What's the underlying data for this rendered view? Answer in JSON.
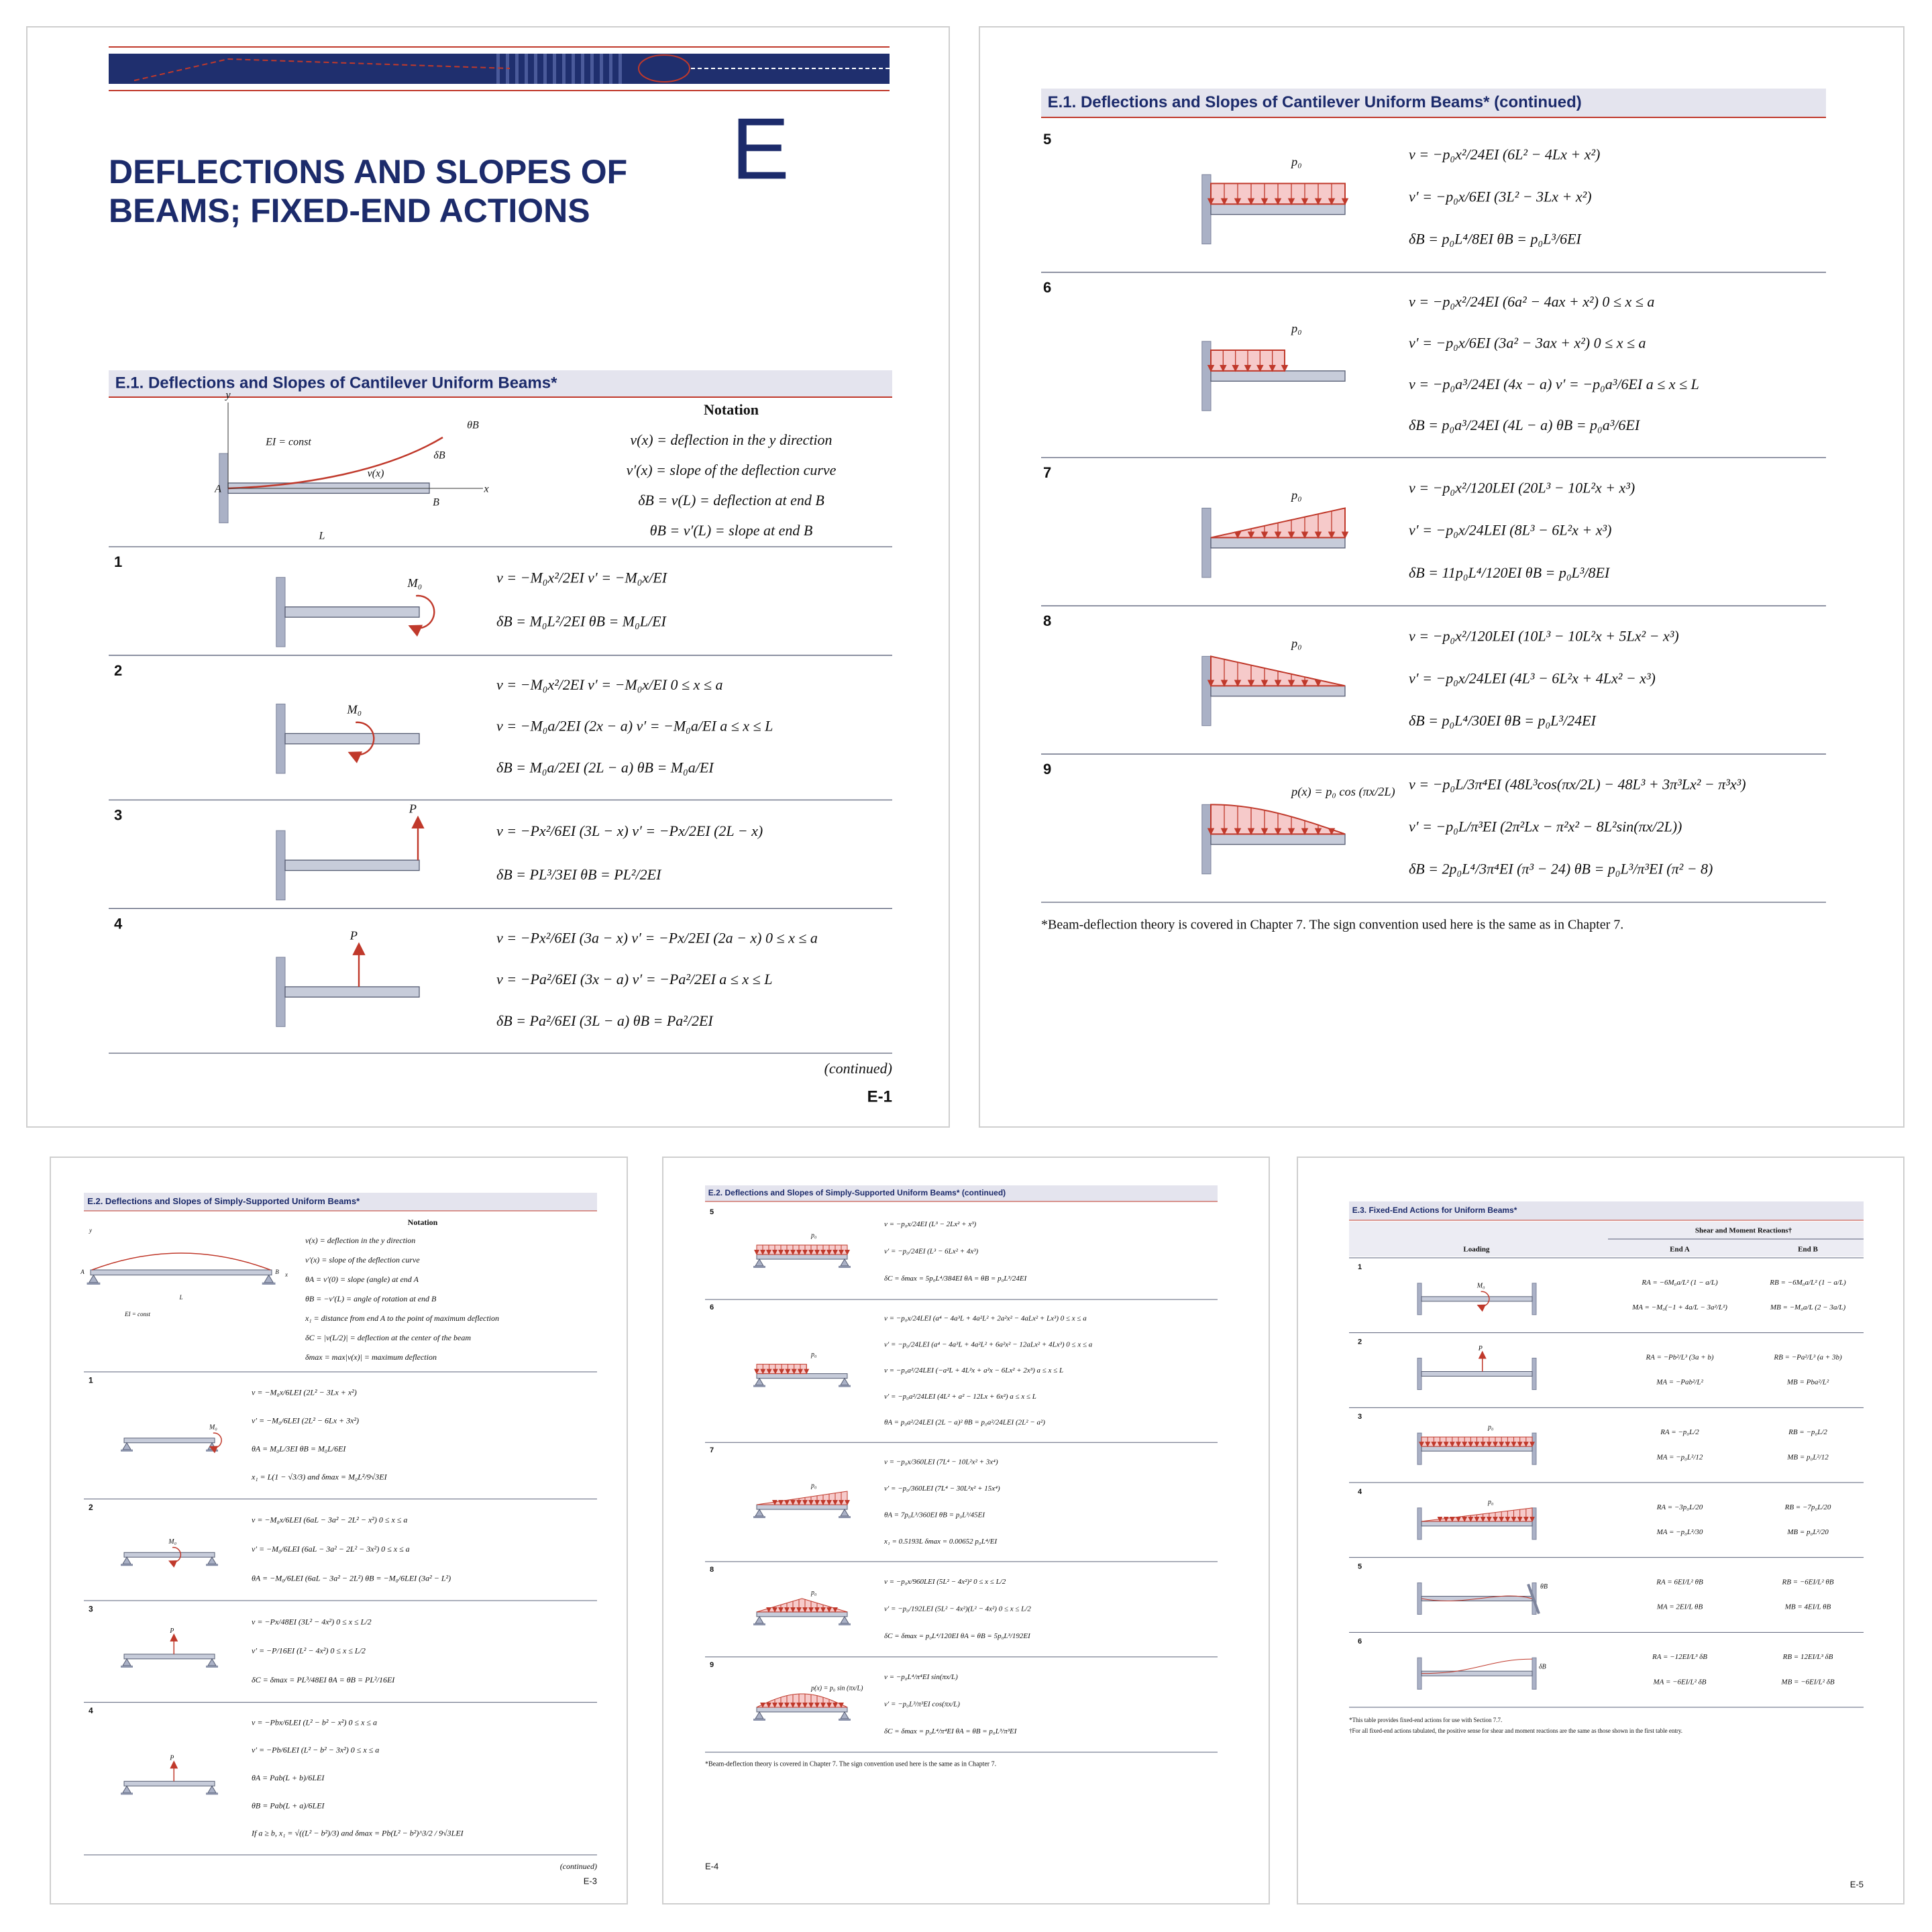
{
  "pages": [
    {
      "chapter_title": [
        "DEFLECTIONS AND SLOPES OF",
        "BEAMS; FIXED-END ACTIONS"
      ],
      "appendix_letter": "E",
      "section_title": "E.1.  Deflections and Slopes of Cantilever Uniform Beams*",
      "notation": {
        "heading": "Notation",
        "lines": [
          "v(x) = deflection in the y direction",
          "v′(x) = slope of the deflection curve",
          "δB = v(L) = deflection at end B",
          "θB = v′(L) = slope at end B"
        ],
        "diagram_labels": [
          "EI = const",
          "v(x)",
          "θB",
          "δB",
          "A",
          "B",
          "x",
          "y",
          "L"
        ]
      },
      "cases": [
        {
          "number": "1",
          "load_label": "M₀",
          "formulas": [
            "v = −M₀x²/2EI     v′ = −M₀x/EI",
            "δB = M₀L²/2EI     θB = M₀L/EI"
          ]
        },
        {
          "number": "2",
          "load_label": "M₀",
          "formulas": [
            "v = −M₀x²/2EI     v′ = −M₀x/EI     0 ≤ x ≤ a",
            "v = −M₀a/2EI (2x − a)     v′ = −M₀a/EI     a ≤ x ≤ L",
            "δB = M₀a/2EI (2L − a)     θB = M₀a/EI"
          ]
        },
        {
          "number": "3",
          "load_label": "P",
          "formulas": [
            "v = −Px²/6EI (3L − x)     v′ = −Px/2EI (2L − x)",
            "δB = PL³/3EI     θB = PL²/2EI"
          ]
        },
        {
          "number": "4",
          "load_label": "P",
          "formulas": [
            "v = −Px²/6EI (3a − x)     v′ = −Px/2EI (2a − x)     0 ≤ x ≤ a",
            "v = −Pa²/6EI (3x − a)     v′ = −Pa²/2EI     a ≤ x ≤ L",
            "δB = Pa²/6EI (3L − a)     θB = Pa²/2EI"
          ]
        }
      ],
      "continued": "(continued)",
      "page_number": "E-1"
    },
    {
      "section_title": "E.1.  Deflections and Slopes of Cantilever Uniform Beams* (continued)",
      "cases": [
        {
          "number": "5",
          "load_label": "p₀",
          "formulas": [
            "v = −p₀x²/24EI (6L² − 4Lx + x²)",
            "v′ = −p₀x/6EI (3L² − 3Lx + x²)",
            "δB = p₀L⁴/8EI     θB = p₀L³/6EI"
          ]
        },
        {
          "number": "6",
          "load_label": "p₀",
          "formulas": [
            "v = −p₀x²/24EI (6a² − 4ax + x²)     0 ≤ x ≤ a",
            "v′ = −p₀x/6EI (3a² − 3ax + x²)     0 ≤ x ≤ a",
            "v = −p₀a³/24EI (4x − a)     v′ = −p₀a³/6EI     a ≤ x ≤ L",
            "δB = p₀a³/24EI (4L − a)     θB = p₀a³/6EI"
          ]
        },
        {
          "number": "7",
          "load_label": "p₀",
          "formulas": [
            "v = −p₀x²/120LEI (20L³ − 10L²x + x³)",
            "v′ = −p₀x/24LEI (8L³ − 6L²x + x³)",
            "δB = 11p₀L⁴/120EI     θB = p₀L³/8EI"
          ]
        },
        {
          "number": "8",
          "load_label": "p₀",
          "formulas": [
            "v = −p₀x²/120LEI (10L³ − 10L²x + 5Lx² − x³)",
            "v′ = −p₀x/24LEI (4L³ − 6L²x + 4Lx² − x³)",
            "δB = p₀L⁴/30EI     θB = p₀L³/24EI"
          ]
        },
        {
          "number": "9",
          "load_label": "p(x) = p₀ cos (πx/2L)",
          "formulas": [
            "v = −p₀L/3π⁴EI (48L³cos(πx/2L) − 48L³ + 3π³Lx² − π³x³)",
            "v′ = −p₀L/π³EI (2π²Lx − π²x² − 8L²sin(πx/2L))",
            "δB = 2p₀L⁴/3π⁴EI (π³ − 24)     θB = p₀L³/π³EI (π² − 8)"
          ]
        }
      ],
      "footnote": "*Beam-deflection theory is covered in Chapter 7. The sign convention used here is the same as in Chapter 7."
    },
    {
      "section_title": "E.2.  Deflections and Slopes of Simply-Supported Uniform Beams*",
      "notation": {
        "heading": "Notation",
        "lines": [
          "v(x) = deflection in the y direction",
          "v′(x) = slope of the deflection curve",
          "θA = v′(0) = slope (angle) at end A",
          "θB = −v′(L) = angle of rotation at end B",
          "x₁ = distance from end A to the point of maximum deflection",
          "δC = |v(L/2)| = deflection at the center of the beam",
          "δmax = max|v(x)| = maximum deflection"
        ],
        "diagram_labels": [
          "EI = const",
          "A",
          "B",
          "x",
          "y",
          "L"
        ]
      },
      "cases": [
        {
          "number": "1",
          "load_label": "M₀",
          "formulas": [
            "v = −M₀x/6LEI (2L² − 3Lx + x²)",
            "v′ = −M₀/6LEI (2L² − 6Lx + 3x²)",
            "θA = M₀L/3EI     θB = M₀L/6EI",
            "x₁ = L(1 − √3/3) and δmax = M₀L²/9√3EI"
          ]
        },
        {
          "number": "2",
          "load_label": "M₀",
          "formulas": [
            "v = −M₀x/6LEI (6aL − 3a² − 2L² − x²)     0 ≤ x ≤ a",
            "v′ = −M₀/6LEI (6aL − 3a² − 2L² − 3x²)     0 ≤ x ≤ a",
            "θA = −M₀/6LEI (6aL − 3a² − 2L²)     θB = −M₀/6LEI (3a² − L²)"
          ]
        },
        {
          "number": "3",
          "load_label": "P",
          "formulas": [
            "v = −Px/48EI (3L² − 4x²)     0 ≤ x ≤ L/2",
            "v′ = −P/16EI (L² − 4x²)     0 ≤ x ≤ L/2",
            "δC = δmax = PL³/48EI     θA = θB = PL²/16EI"
          ]
        },
        {
          "number": "4",
          "load_label": "P",
          "formulas": [
            "v = −Pbx/6LEI (L² − b² − x²)     0 ≤ x ≤ a",
            "v′ = −Pb/6LEI (L² − b² − 3x²)     0 ≤ x ≤ a",
            "θA = Pab(L + b)/6LEI",
            "θB = Pab(L + a)/6LEI",
            "If a ≥ b, x₁ = √((L² − b²)/3) and δmax = Pb(L² − b²)^3/2 / 9√3LEI"
          ]
        }
      ],
      "continued": "(continued)",
      "page_number": "E-3"
    },
    {
      "section_title": "E.2.  Deflections and Slopes of Simply-Supported Uniform Beams* (continued)",
      "cases": [
        {
          "number": "5",
          "load_label": "p₀",
          "formulas": [
            "v = −p₀x/24EI (L³ − 2Lx² + x³)",
            "v′ = −p₀/24EI (L³ − 6Lx² + 4x³)",
            "δC = δmax = 5p₀L⁴/384EI     θA = θB = p₀L³/24EI"
          ]
        },
        {
          "number": "6",
          "load_label": "p₀",
          "formulas": [
            "v = −p₀x/24LEI (a⁴ − 4a³L + 4a²L² + 2a²x² − 4aLx² + Lx³)     0 ≤ x ≤ a",
            "v′ = −p₀/24LEI (a⁴ − 4a³L + 4a²L² + 6a²x² − 12aLx² + 4Lx³)     0 ≤ x ≤ a",
            "v = −p₀a²/24LEI (−a²L + 4L²x + a²x − 6Lx² + 2x³)     a ≤ x ≤ L",
            "v′ = −p₀a²/24LEI (4L² + a² − 12Lx + 6x²)     a ≤ x ≤ L",
            "θA = p₀a²/24LEI (2L − a)²     θB = p₀a²/24LEI (2L² − a²)"
          ]
        },
        {
          "number": "7",
          "load_label": "p₀",
          "formulas": [
            "v = −p₀x/360LEI (7L⁴ − 10L²x² + 3x⁴)",
            "v′ = −p₀/360LEI (7L⁴ − 30L²x² + 15x⁴)",
            "θA = 7p₀L³/360EI     θB = p₀L³/45EI",
            "x₁ = 0.5193L     δmax = 0.00652 p₀L⁴/EI"
          ]
        },
        {
          "number": "8",
          "load_label": "p₀",
          "formulas": [
            "v = −p₀x/960LEI (5L² − 4x²)²     0 ≤ x ≤ L/2",
            "v′ = −p₀/192LEI (5L² − 4x²)(L² − 4x²)     0 ≤ x ≤ L/2",
            "δC = δmax = p₀L⁴/120EI     θA = θB = 5p₀L³/192EI"
          ]
        },
        {
          "number": "9",
          "load_label": "p(x) = p₀ sin (πx/L)",
          "formulas": [
            "v = −p₀L⁴/π⁴EI sin(πx/L)",
            "v′ = −p₀L³/π³EI cos(πx/L)",
            "δC = δmax = p₀L⁴/π⁴EI     θA = θB = p₀L³/π³EI"
          ]
        }
      ],
      "footnote": "*Beam-deflection theory is covered in Chapter 7. The sign convention used here is the same as in Chapter 7.",
      "page_number": "E-4"
    },
    {
      "section_title": "E.3.  Fixed-End Actions for Uniform Beams*",
      "table": {
        "group_header": "Shear and Moment Reactions†",
        "columns": [
          "Loading",
          "End A",
          "End B"
        ],
        "rows": [
          {
            "number": "1",
            "load_label": "M₀",
            "end_a": [
              "RA = −6M₀a/L² (1 − a/L)",
              "MA = −M₀(−1 + 4a/L − 3a²/L²)"
            ],
            "end_b": [
              "RB = −6M₀a/L² (1 − a/L)",
              "MB = −M₀a/L (2 − 3a/L)"
            ]
          },
          {
            "number": "2",
            "load_label": "P",
            "end_a": [
              "RA = −Pb²/L³ (3a + b)",
              "MA = −Pab²/L²"
            ],
            "end_b": [
              "RB = −Pa²/L³ (a + 3b)",
              "MB = Pba²/L²"
            ]
          },
          {
            "number": "3",
            "load_label": "p₀",
            "end_a": [
              "RA = −p₀L/2",
              "MA = −p₀L²/12"
            ],
            "end_b": [
              "RB = −p₀L/2",
              "MB = p₀L²/12"
            ]
          },
          {
            "number": "4",
            "load_label": "p₀",
            "end_a": [
              "RA = −3p₀L/20",
              "MA = −p₀L²/30"
            ],
            "end_b": [
              "RB = −7p₀L/20",
              "MB = p₀L²/20"
            ]
          },
          {
            "number": "5",
            "load_label": "θB",
            "end_a": [
              "RA = 6EI/L² θB",
              "MA = 2EI/L θB"
            ],
            "end_b": [
              "RB = −6EI/L² θB",
              "MB = 4EI/L θB"
            ]
          },
          {
            "number": "6",
            "load_label": "δB",
            "end_a": [
              "RA = −12EI/L³ δB",
              "MA = −6EI/L² δB"
            ],
            "end_b": [
              "RB = 12EI/L³ δB",
              "MB = −6EI/L² δB"
            ]
          }
        ]
      },
      "footnotes": [
        "*This table provides fixed-end actions for use with Section 7.7.",
        "†For all fixed-end actions tabulated, the positive sense for shear and moment reactions are the same as those shown in the first table entry."
      ],
      "page_number": "E-5"
    }
  ]
}
